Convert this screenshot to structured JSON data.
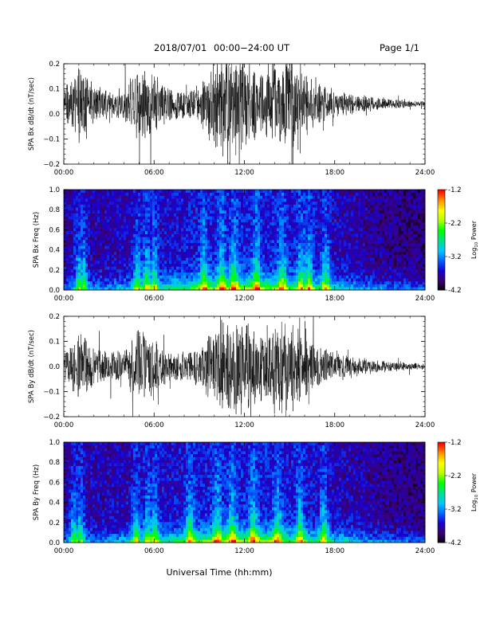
{
  "page": {
    "header_date": "2018/07/01",
    "header_range": "00:00−24:00 UT",
    "page_label": "Page 1/1",
    "footer_xlabel": "Universal Time (hh:mm)"
  },
  "colorbar": {
    "label_prefix": "Log",
    "label_subscript": "10",
    "label_suffix": " Power",
    "range": [
      -4.2,
      -1.2
    ],
    "ticks": [
      "-1.2",
      "-2.2",
      "-3.2",
      "-4.2"
    ],
    "colors": [
      "#000000",
      "#3a0070",
      "#1a00d0",
      "#0064ff",
      "#00c8ff",
      "#00e08c",
      "#00ff00",
      "#b4ff00",
      "#ffff00",
      "#ff9000",
      "#ff0000"
    ]
  },
  "chart_data": [
    {
      "type": "line",
      "ylabel": "SPA Bx dB/dt (nT/sec)",
      "ylim": [
        -0.2,
        0.2
      ],
      "ytick_labels": [
        "0.2",
        "0.1",
        "0.0",
        "−0.1",
        "−0.2"
      ],
      "xlim_hours": [
        0,
        24
      ],
      "x_tick_labels": [
        "00:00",
        "06:00",
        "12:00",
        "18:00",
        "24:00"
      ],
      "baseline": 0.04,
      "activity_profile_hours": [
        0,
        1,
        2,
        3,
        4,
        5,
        6,
        7,
        8,
        9,
        10,
        11,
        12,
        13,
        14,
        15,
        16,
        17,
        18,
        19,
        20,
        21,
        22,
        23,
        24
      ],
      "amplitude_profile": [
        0.06,
        0.16,
        0.08,
        0.06,
        0.07,
        0.16,
        0.12,
        0.07,
        0.06,
        0.08,
        0.2,
        0.22,
        0.2,
        0.12,
        0.2,
        0.2,
        0.14,
        0.08,
        0.06,
        0.045,
        0.035,
        0.025,
        0.02,
        0.015,
        0.012
      ]
    },
    {
      "type": "heatmap",
      "ylabel": "SPA Bx Freq (Hz)",
      "ylim": [
        0.0,
        1.0
      ],
      "ytick_labels": [
        "1.0",
        "0.8",
        "0.6",
        "0.4",
        "0.2",
        "0.0"
      ],
      "xlim_hours": [
        0,
        24
      ],
      "x_tick_labels": [
        "00:00",
        "06:00",
        "12:00",
        "18:00",
        "24:00"
      ],
      "bright_bands_hours": [
        1.0,
        1.3,
        4.9,
        5.5,
        6.0,
        9.3,
        10.5,
        11.3,
        12.8,
        14.5,
        15.8,
        16.3,
        17.4
      ],
      "color_scale": "log10 power, -4.2 to -1.2"
    },
    {
      "type": "line",
      "ylabel": "SPA By dB/dt (nT/sec)",
      "ylim": [
        -0.2,
        0.2
      ],
      "ytick_labels": [
        "0.2",
        "0.1",
        "0.0",
        "−0.1",
        "−0.2"
      ],
      "xlim_hours": [
        0,
        24
      ],
      "x_tick_labels": [
        "00:00",
        "06:00",
        "12:00",
        "18:00",
        "24:00"
      ],
      "baseline": 0.0,
      "activity_profile_hours": [
        0,
        1,
        2,
        3,
        4,
        5,
        6,
        7,
        8,
        9,
        10,
        11,
        12,
        13,
        14,
        15,
        16,
        17,
        18,
        19,
        20,
        21,
        22,
        23,
        24
      ],
      "amplitude_profile": [
        0.05,
        0.15,
        0.08,
        0.06,
        0.07,
        0.16,
        0.12,
        0.07,
        0.06,
        0.08,
        0.18,
        0.22,
        0.2,
        0.14,
        0.2,
        0.2,
        0.12,
        0.08,
        0.06,
        0.045,
        0.035,
        0.025,
        0.02,
        0.016,
        0.012
      ]
    },
    {
      "type": "heatmap",
      "ylabel": "SPA By Freq (Hz)",
      "ylim": [
        0.0,
        1.0
      ],
      "ytick_labels": [
        "1.0",
        "0.8",
        "0.6",
        "0.4",
        "0.2",
        "0.0"
      ],
      "xlim_hours": [
        0,
        24
      ],
      "x_tick_labels": [
        "00:00",
        "06:00",
        "12:00",
        "18:00",
        "24:00"
      ],
      "bright_bands_hours": [
        0.7,
        1.1,
        4.8,
        5.6,
        6.0,
        8.4,
        10.2,
        11.2,
        12.6,
        14.2,
        15.7,
        17.3
      ],
      "color_scale": "log10 power, -4.2 to -1.2"
    }
  ]
}
